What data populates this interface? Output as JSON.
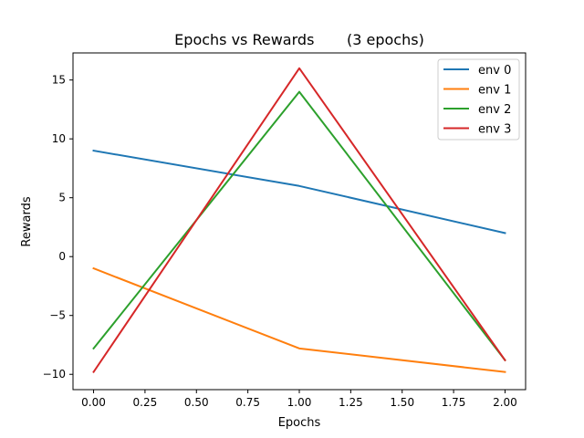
{
  "chart_data": {
    "type": "line",
    "title": "Epochs vs Rewards       (3 epochs)",
    "xlabel": "Epochs",
    "ylabel": "Rewards",
    "x": [
      0.0,
      1.0,
      2.0
    ],
    "xlim": [
      -0.1,
      2.1
    ],
    "ylim": [
      -11.3,
      17.3
    ],
    "xticks": [
      0.0,
      0.25,
      0.5,
      0.75,
      1.0,
      1.25,
      1.5,
      1.75,
      2.0
    ],
    "xtick_labels": [
      "0.00",
      "0.25",
      "0.50",
      "0.75",
      "1.00",
      "1.25",
      "1.50",
      "1.75",
      "2.00"
    ],
    "yticks": [
      -10,
      -5,
      0,
      5,
      10,
      15
    ],
    "ytick_labels": [
      "−10",
      "−5",
      "0",
      "5",
      "10",
      "15"
    ],
    "grid": false,
    "legend_position": "top-right",
    "series": [
      {
        "name": "env 0",
        "color": "#1f77b4",
        "values": [
          9.0,
          6.0,
          2.0
        ]
      },
      {
        "name": "env 1",
        "color": "#ff7f0e",
        "values": [
          -1.0,
          -7.8,
          -9.8
        ]
      },
      {
        "name": "env 2",
        "color": "#2ca02c",
        "values": [
          -7.8,
          14.0,
          -8.8
        ]
      },
      {
        "name": "env 3",
        "color": "#d62728",
        "values": [
          -9.8,
          16.0,
          -8.8
        ]
      }
    ]
  }
}
